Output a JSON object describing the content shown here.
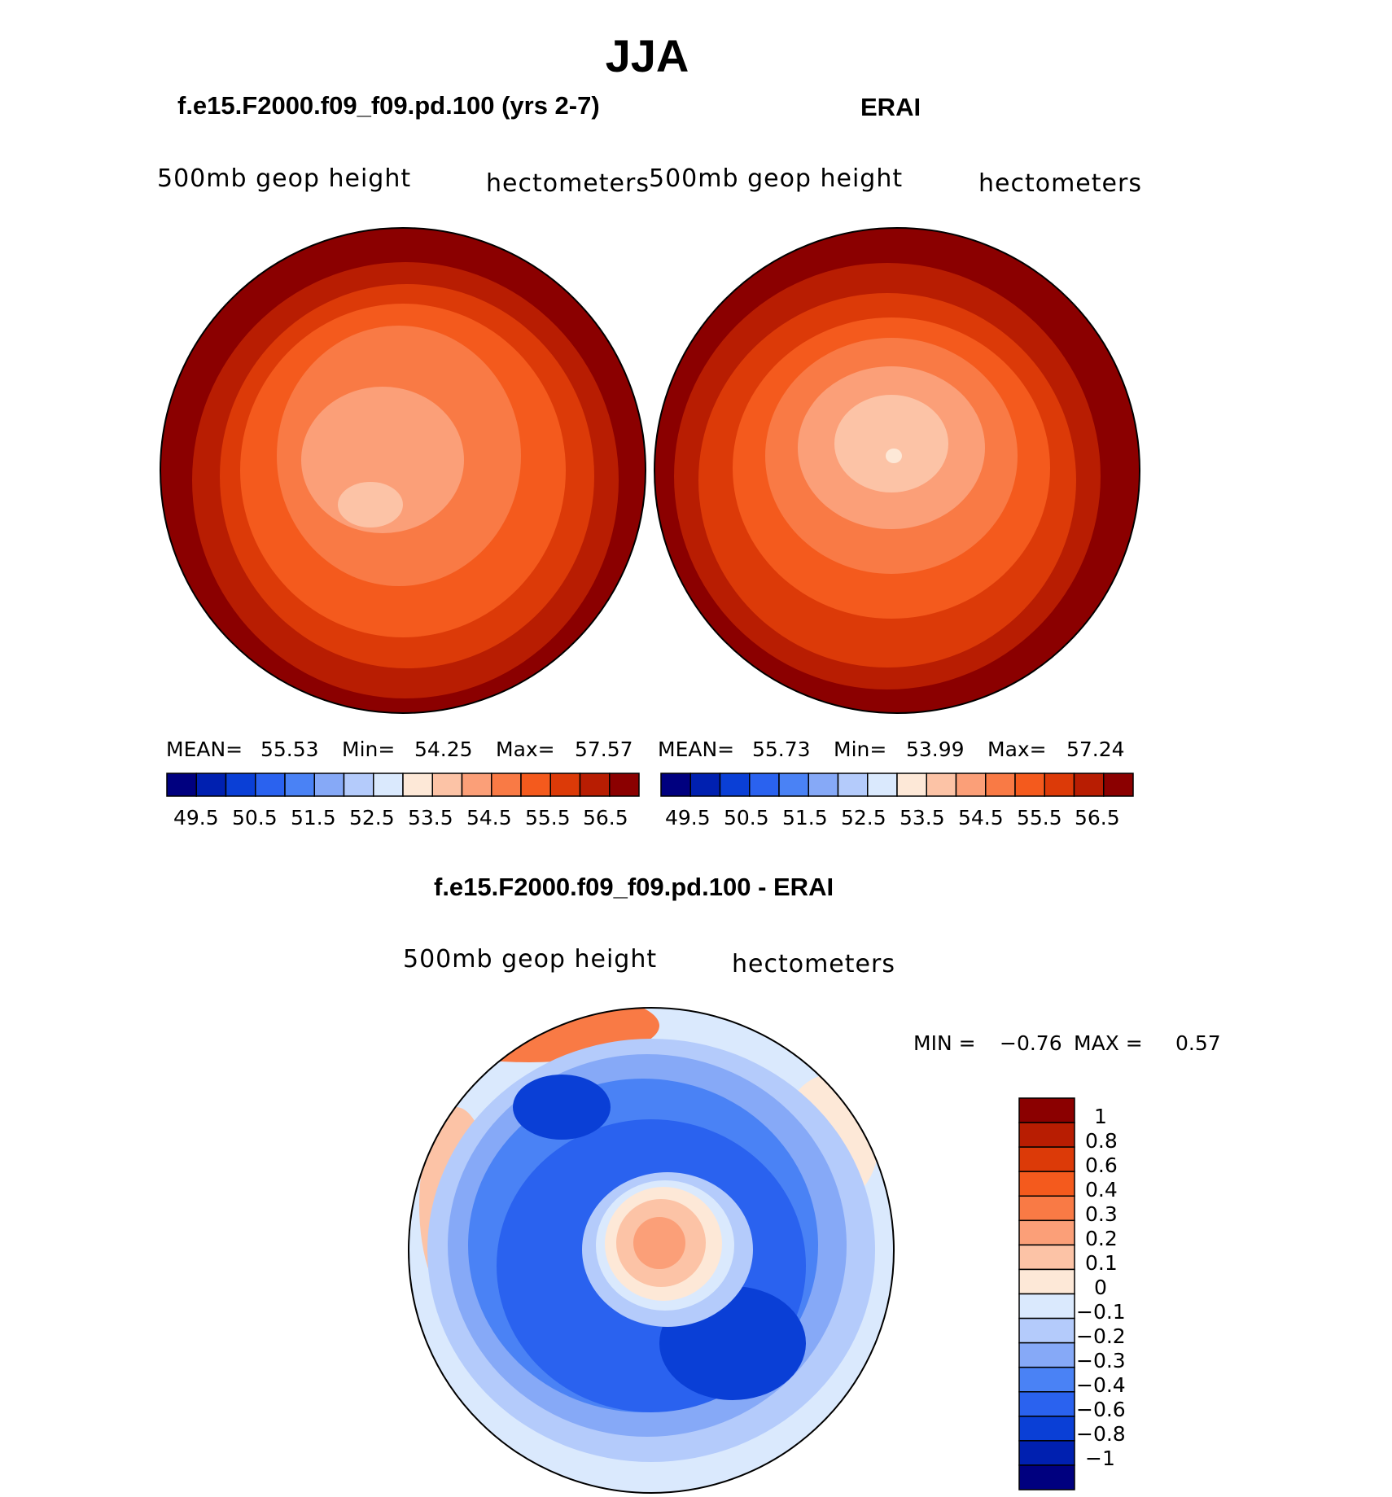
{
  "figure": {
    "title": "JJA"
  },
  "panels": [
    {
      "title": "f.e15.F2000.f09_f09.pd.100 (yrs 2-7)",
      "variable": "500mb geop height",
      "units": "hectometers",
      "stats": {
        "mean_label": "MEAN=",
        "mean": "55.53",
        "min_label": "Min=",
        "min": "54.25",
        "max_label": "Max=",
        "max": "57.57"
      }
    },
    {
      "title": "ERAI",
      "variable": "500mb geop height",
      "units": "hectometers",
      "stats": {
        "mean_label": "MEAN=",
        "mean": "55.73",
        "min_label": "Min=",
        "min": "53.99",
        "max_label": "Max=",
        "max": "57.24"
      }
    },
    {
      "title": "f.e15.F2000.f09_f09.pd.100 - ERAI",
      "variable": "500mb geop height",
      "units": "hectometers",
      "stats": {
        "min_label": "MIN =",
        "min": "−0.76",
        "max_label": "MAX =",
        "max": "0.57"
      }
    }
  ],
  "colorbar_top": {
    "tick_labels": [
      "49.5",
      "50.5",
      "51.5",
      "52.5",
      "53.5",
      "54.5",
      "55.5",
      "56.5"
    ],
    "colors": [
      "#00007f",
      "#0020b0",
      "#0a3fd6",
      "#2a62ef",
      "#4a82f5",
      "#86a9f7",
      "#b4cbfb",
      "#dae9fd",
      "#fde8d7",
      "#fcc3a6",
      "#fb9f78",
      "#f97a45",
      "#f45a1d",
      "#dc3a08",
      "#b81d02",
      "#8b0000"
    ]
  },
  "colorbar_diff": {
    "tick_labels": [
      "1",
      "0.8",
      "0.6",
      "0.4",
      "0.3",
      "0.2",
      "0.1",
      "0",
      "−0.1",
      "−0.2",
      "−0.3",
      "−0.4",
      "−0.6",
      "−0.8",
      "−1"
    ],
    "colors": [
      "#8b0000",
      "#b81d02",
      "#dc3a08",
      "#f45a1d",
      "#f97a45",
      "#fb9f78",
      "#fcc3a6",
      "#fde8d7",
      "#dae9fd",
      "#b4cbfb",
      "#86a9f7",
      "#4a82f5",
      "#2a62ef",
      "#0a3fd6",
      "#0020b0",
      "#00007f"
    ]
  },
  "chart_data": {
    "type": "heatmap",
    "projection": "north polar stereographic",
    "season": "JJA",
    "quantity": "500mb geop height",
    "units": "hectometers",
    "maps": [
      {
        "name": "f.e15.F2000.f09_f09.pd.100 (yrs 2-7)",
        "mean": 55.53,
        "min": 54.25,
        "max": 57.57,
        "contour_levels": [
          49.5,
          50,
          50.5,
          51,
          51.5,
          52,
          52.5,
          53,
          53.5,
          54,
          54.5,
          55,
          55.5,
          56,
          56.5
        ]
      },
      {
        "name": "ERAI",
        "mean": 55.73,
        "min": 53.99,
        "max": 57.24,
        "contour_levels": [
          49.5,
          50,
          50.5,
          51,
          51.5,
          52,
          52.5,
          53,
          53.5,
          54,
          54.5,
          55,
          55.5,
          56,
          56.5
        ]
      },
      {
        "name": "f.e15.F2000.f09_f09.pd.100 - ERAI",
        "min": -0.76,
        "max": 0.57,
        "contour_levels": [
          -1,
          -0.8,
          -0.6,
          -0.4,
          -0.3,
          -0.2,
          -0.1,
          0,
          0.1,
          0.2,
          0.3,
          0.4,
          0.6,
          0.8,
          1
        ]
      }
    ]
  }
}
